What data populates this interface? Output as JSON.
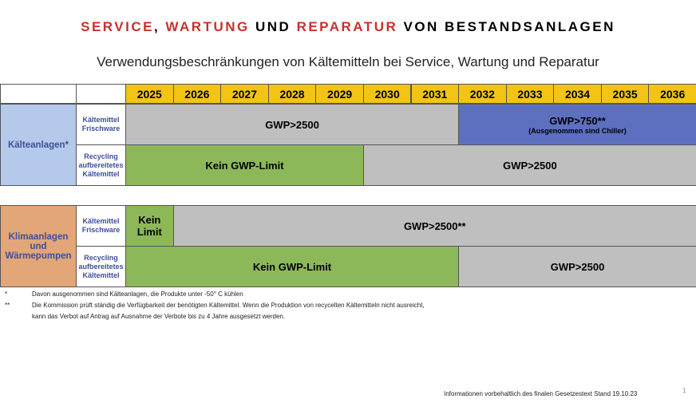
{
  "title": [
    "SERVICE",
    ",",
    "WARTUNG",
    "UND",
    "REPARATUR",
    "VON BESTANDSANLAGEN"
  ],
  "subtitle": "Verwendungsbeschränkungen von Kältemitteln bei Service, Wartung und Reparatur",
  "years": [
    "2025",
    "2026",
    "2027",
    "2028",
    "2029",
    "2030",
    "2031",
    "2032",
    "2033",
    "2034",
    "2035",
    "2036"
  ],
  "groups": [
    {
      "label": "Kälteanlagen*",
      "rows": [
        {
          "label": "Kältemittel Frischware",
          "cells": [
            {
              "text": "GWP>2500"
            },
            {
              "text": "GWP>750**",
              "note": "(Ausgenommen sind Chiller)"
            }
          ]
        },
        {
          "label": "Recycling aufbereitetes Kältemittel",
          "cells": [
            {
              "text": "Kein GWP-Limit"
            },
            {
              "text": "GWP>2500"
            }
          ]
        }
      ]
    },
    {
      "label": "Klimaanlagen und Wärmepumpen",
      "rows": [
        {
          "label": "Kältemittel Frischware",
          "cells": [
            {
              "text": "Kein Limit"
            },
            {
              "text": "GWP>2500**"
            }
          ]
        },
        {
          "label": "Recycling aufbereitetes Kältemittel",
          "cells": [
            {
              "text": "Kein GWP-Limit"
            },
            {
              "text": "GWP>2500"
            }
          ]
        }
      ]
    }
  ],
  "footnotes": [
    {
      "mark": "*",
      "lines": [
        "Davon ausgenommen sind Kälteanlagen, die Produkte unter -50° C kühlen"
      ]
    },
    {
      "mark": "**",
      "lines": [
        "Die Kommission prüft ständig die Verfügbarkeit der benötigten Kältemittel. Wenn die Produktion von recycelten Kältemitteln nicht ausreicht,",
        "kann das Verbot auf Antrag auf Ausnahme der Verbote bis zu 4 Jahre ausgesetzt werden."
      ]
    }
  ],
  "footer": "Informationen vorbehaltlich des finalen Gesetzestext Stand 19.10.23",
  "page_number": "1"
}
